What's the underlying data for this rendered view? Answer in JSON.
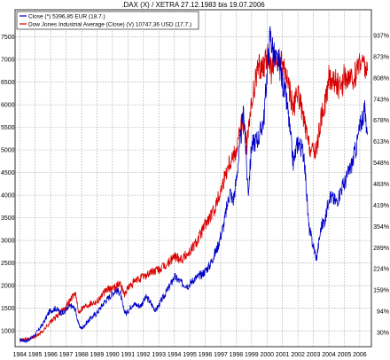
{
  "chart_data": {
    "type": "line",
    "title": ".DAX (X) / XETRA 27.12.1983 bis 19.07.2006",
    "x_labels": [
      "1984",
      "1985",
      "1986",
      "1987",
      "1988",
      "1989",
      "1990",
      "1991",
      "1992",
      "1993",
      "1994",
      "1995",
      "1996",
      "1997",
      "1998",
      "1999",
      "2000",
      "2001",
      "2002",
      "2003",
      "2004",
      "2005",
      "2006"
    ],
    "left_ticks": [
      "1000",
      "1500",
      "2000",
      "2500",
      "3000",
      "3500",
      "4000",
      "4500",
      "5000",
      "5500",
      "6000",
      "6500",
      "7000",
      "7500"
    ],
    "right_ticks": [
      "30%",
      "94%",
      "159%",
      "224%",
      "289%",
      "354%",
      "419%",
      "483%",
      "548%",
      "613%",
      "678%",
      "743%",
      "808%",
      "873%",
      "937%"
    ],
    "grid": true,
    "legend_position": "top-left",
    "colors": {
      "dax": "#0000c8",
      "dow": "#d80000"
    },
    "series": [
      {
        "name": "Close (*) 5396,85 EUR (18.7.)",
        "axis": "left",
        "x": [
          1984.0,
          1984.5,
          1985.0,
          1985.5,
          1985.9,
          1986.3,
          1986.8,
          1987.3,
          1987.6,
          1987.8,
          1988.0,
          1988.5,
          1989.0,
          1989.5,
          1989.8,
          1990.2,
          1990.5,
          1990.7,
          1990.9,
          1991.3,
          1991.8,
          1992.2,
          1992.6,
          1992.8,
          1993.3,
          1993.8,
          1994.0,
          1994.5,
          1994.9,
          1995.3,
          1995.8,
          1996.3,
          1996.8,
          1997.2,
          1997.6,
          1997.8,
          1998.0,
          1998.3,
          1998.5,
          1998.7,
          1998.8,
          1999.0,
          1999.5,
          1999.8,
          2000.0,
          2000.2,
          2000.5,
          2000.8,
          2001.0,
          2001.3,
          2001.7,
          2002.0,
          2002.4,
          2002.7,
          2002.9,
          2003.2,
          2003.5,
          2003.8,
          2004.0,
          2004.5,
          2004.8,
          2005.0,
          2005.5,
          2005.8,
          2006.0,
          2006.3,
          2006.5
        ],
        "y": [
          800,
          780,
          920,
          1150,
          1420,
          1500,
          1380,
          1560,
          1480,
          1150,
          1050,
          1250,
          1400,
          1650,
          1750,
          1900,
          1850,
          1500,
          1380,
          1600,
          1550,
          1750,
          1550,
          1450,
          1750,
          2050,
          2200,
          2050,
          2000,
          2150,
          2250,
          2450,
          2850,
          3350,
          4100,
          3850,
          4300,
          5250,
          5900,
          4450,
          4100,
          5100,
          5300,
          5700,
          6700,
          7550,
          7000,
          6900,
          6500,
          6000,
          4700,
          5200,
          4900,
          3300,
          3000,
          2600,
          3300,
          3500,
          4000,
          3850,
          4150,
          4250,
          4700,
          5100,
          5500,
          5900,
          5397
        ]
      },
      {
        "name": "Dow Jones Industrial Average (Close) (V) 10747,36 USD (17.7.)",
        "axis": "left",
        "x": [
          1984.0,
          1984.5,
          1985.0,
          1985.5,
          1986.0,
          1986.5,
          1987.0,
          1987.6,
          1987.8,
          1988.0,
          1988.5,
          1989.0,
          1989.6,
          1990.0,
          1990.5,
          1990.8,
          1991.0,
          1991.5,
          1992.0,
          1992.5,
          1993.0,
          1993.5,
          1994.0,
          1994.5,
          1995.0,
          1995.5,
          1996.0,
          1996.5,
          1997.0,
          1997.5,
          1998.0,
          1998.4,
          1998.7,
          1999.0,
          1999.4,
          1999.8,
          2000.0,
          2000.3,
          2000.6,
          2001.0,
          2001.3,
          2001.7,
          2002.0,
          2002.4,
          2002.7,
          2002.9,
          2003.2,
          2003.5,
          2003.8,
          2004.0,
          2004.5,
          2004.8,
          2005.0,
          2005.5,
          2005.8,
          2006.0,
          2006.3,
          2006.5
        ],
        "y": [
          800,
          820,
          860,
          1000,
          1200,
          1350,
          1550,
          1850,
          1400,
          1500,
          1600,
          1650,
          1900,
          1950,
          2050,
          1800,
          1950,
          2100,
          2200,
          2300,
          2350,
          2450,
          2650,
          2600,
          2750,
          3000,
          3350,
          3600,
          4100,
          4700,
          5000,
          5700,
          5100,
          6000,
          6800,
          6900,
          7100,
          6700,
          7000,
          6900,
          6600,
          5900,
          6300,
          5600,
          5100,
          4950,
          5000,
          5700,
          6100,
          6600,
          6500,
          6300,
          6650,
          6500,
          6750,
          7000,
          6850,
          6750
        ]
      }
    ]
  }
}
